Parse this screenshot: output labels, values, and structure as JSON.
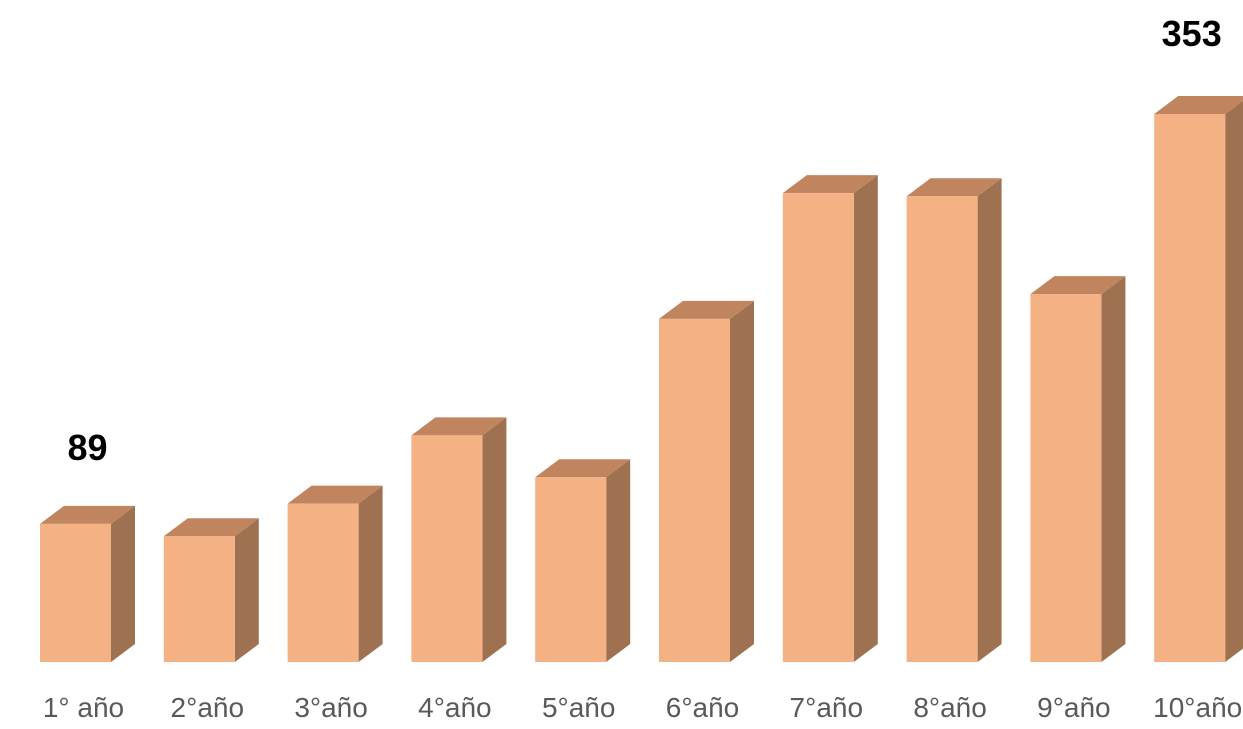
{
  "chart_data": {
    "type": "bar",
    "style": "3d-column",
    "categories": [
      "1° año",
      "2°año",
      "3°año",
      "4°año",
      "5°año",
      "6°año",
      "7°año",
      "8°año",
      "9°año",
      "10°año"
    ],
    "values": [
      89,
      81,
      102,
      146,
      119,
      221,
      302,
      300,
      237,
      353
    ],
    "data_labels": [
      {
        "index": 0,
        "text": "89"
      },
      {
        "index": 9,
        "text": "353"
      }
    ],
    "title": "",
    "xlabel": "",
    "ylabel": "",
    "ylim": [
      0,
      353
    ],
    "grid": false,
    "legend": "none",
    "colors": {
      "front": "#f4b183",
      "top": "#c0845f",
      "side": "#9e7151",
      "category_text": "#595959",
      "data_label_text": "#000000"
    }
  }
}
